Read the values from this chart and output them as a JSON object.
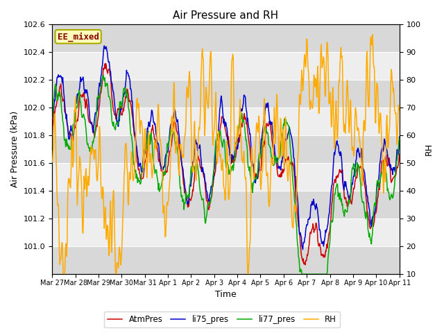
{
  "title": "Air Pressure and RH",
  "xlabel": "Time",
  "ylabel_left": "Air Pressure (kPa)",
  "ylabel_right": "RH",
  "annotation": "EE_mixed",
  "ylim_left": [
    100.8,
    102.6
  ],
  "ylim_right": [
    10,
    100
  ],
  "yticks_left": [
    101.0,
    101.2,
    101.4,
    101.6,
    101.8,
    102.0,
    102.2,
    102.4,
    102.6
  ],
  "yticks_right": [
    10,
    20,
    30,
    40,
    50,
    60,
    70,
    80,
    90,
    100
  ],
  "xtick_labels": [
    "Mar 27",
    "Mar 28",
    "Mar 29",
    "Mar 30",
    "Mar 31",
    "Apr 1",
    "Apr 2",
    "Apr 3",
    "Apr 4",
    "Apr 5",
    "Apr 6",
    "Apr 7",
    "Apr 8",
    "Apr 9",
    "Apr 10",
    "Apr 11"
  ],
  "legend_labels": [
    "AtmPres",
    "li75_pres",
    "li77_pres",
    "RH"
  ],
  "line_colors": [
    "#cc0000",
    "#0000cc",
    "#00aa00",
    "#ffaa00"
  ],
  "background_color": "#ffffff",
  "plot_bg_color": "#d8d8d8",
  "band_color": "#eeeeee",
  "title_fontsize": 11,
  "label_fontsize": 9,
  "tick_fontsize": 8,
  "annot_bg": "#ffffbb",
  "annot_edge": "#aaaa00",
  "annot_text_color": "#880000"
}
